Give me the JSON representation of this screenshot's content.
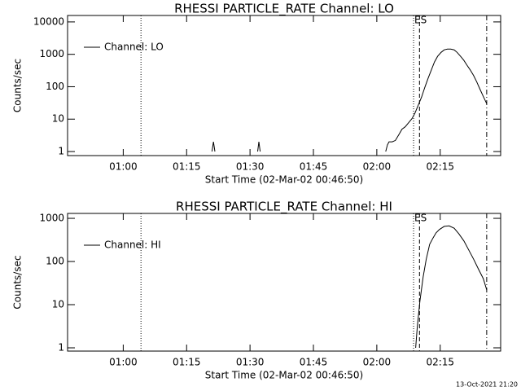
{
  "footer": "13-Oct-2021 21:20",
  "chart_data": [
    {
      "type": "line",
      "title": "RHESSI PARTICLE_RATE Channel: LO",
      "xlabel": "Start Time (02-Mar-02 00:46:50)",
      "ylabel": "Counts/sec",
      "log_y": true,
      "legend": "upper left",
      "color": "#000000",
      "xlim": [
        46.83,
        149.3
      ],
      "ylim": [
        0.75,
        15800
      ],
      "xticks": [
        {
          "value": 60,
          "label": "01:00"
        },
        {
          "value": 75,
          "label": "01:15"
        },
        {
          "value": 90,
          "label": "01:30"
        },
        {
          "value": 105,
          "label": "01:45"
        },
        {
          "value": 120,
          "label": "02:00"
        },
        {
          "value": 135,
          "label": "02:15"
        }
      ],
      "yticks": [
        1,
        10,
        100,
        1000,
        10000
      ],
      "vlines": [
        {
          "x": 64.2,
          "style": "dotted"
        },
        {
          "x": 128.7,
          "style": "dotted"
        },
        {
          "x": 130.1,
          "style": "dashed"
        },
        {
          "x": 146.0,
          "style": "dashdot"
        }
      ],
      "annotations": [
        {
          "text": "ES",
          "x": 128.7
        }
      ],
      "x": [
        81.0,
        81.35,
        81.7,
        86.0,
        91.8,
        92.1,
        92.4,
        107.0,
        122.1,
        122.5,
        122.9,
        123.65,
        124.4,
        125.2,
        125.96,
        126.7,
        127.5,
        128.3,
        129.0,
        129.8,
        130.6,
        131.35,
        132.1,
        132.9,
        133.65,
        134.4,
        135.2,
        135.96,
        136.7,
        137.5,
        138.3,
        139.0,
        139.8,
        140.6,
        141.35,
        142.1,
        142.9,
        143.65,
        144.4,
        145.2,
        146.0
      ],
      "series": [
        {
          "name": "Channel: LO",
          "color": "#000000",
          "values": [
            1,
            2,
            1,
            null,
            1,
            2,
            1,
            null,
            1,
            1.6,
            2,
            2,
            2.2,
            3.3,
            4.9,
            5.8,
            7.7,
            10.3,
            15,
            27,
            48,
            95,
            177,
            330,
            580,
            870,
            1150,
            1370,
            1450,
            1450,
            1370,
            1150,
            870,
            650,
            460,
            330,
            220,
            140,
            84,
            50,
            30
          ]
        }
      ]
    },
    {
      "type": "line",
      "title": "RHESSI PARTICLE_RATE Channel: HI",
      "xlabel": "Start Time (02-Mar-02 00:46:50)",
      "ylabel": "Counts/sec",
      "log_y": true,
      "legend": "upper left",
      "color": "#000000",
      "xlim": [
        46.83,
        149.3
      ],
      "ylim": [
        0.84,
        1300
      ],
      "xticks": [
        {
          "value": 60,
          "label": "01:00"
        },
        {
          "value": 75,
          "label": "01:15"
        },
        {
          "value": 90,
          "label": "01:30"
        },
        {
          "value": 105,
          "label": "01:45"
        },
        {
          "value": 120,
          "label": "02:00"
        },
        {
          "value": 135,
          "label": "02:15"
        }
      ],
      "yticks": [
        1,
        10,
        100,
        1000
      ],
      "vlines": [
        {
          "x": 64.2,
          "style": "dotted"
        },
        {
          "x": 128.7,
          "style": "dotted"
        },
        {
          "x": 130.1,
          "style": "dashed"
        },
        {
          "x": 146.0,
          "style": "dashdot"
        }
      ],
      "annotations": [
        {
          "text": "ES",
          "x": 128.7
        }
      ],
      "x": [
        129.2,
        129.6,
        130.2,
        130.96,
        131.7,
        132.5,
        133.3,
        134.0,
        134.8,
        135.96,
        137.1,
        138.3,
        139.4,
        140.6,
        141.7,
        142.9,
        144.0,
        145.2,
        146.0
      ],
      "series": [
        {
          "name": "Channel: HI",
          "color": "#000000",
          "values": [
            1,
            3.2,
            12,
            44,
            113,
            250,
            350,
            460,
            550,
            650,
            670,
            590,
            440,
            300,
            190,
            113,
            68,
            40,
            22
          ]
        }
      ]
    }
  ]
}
